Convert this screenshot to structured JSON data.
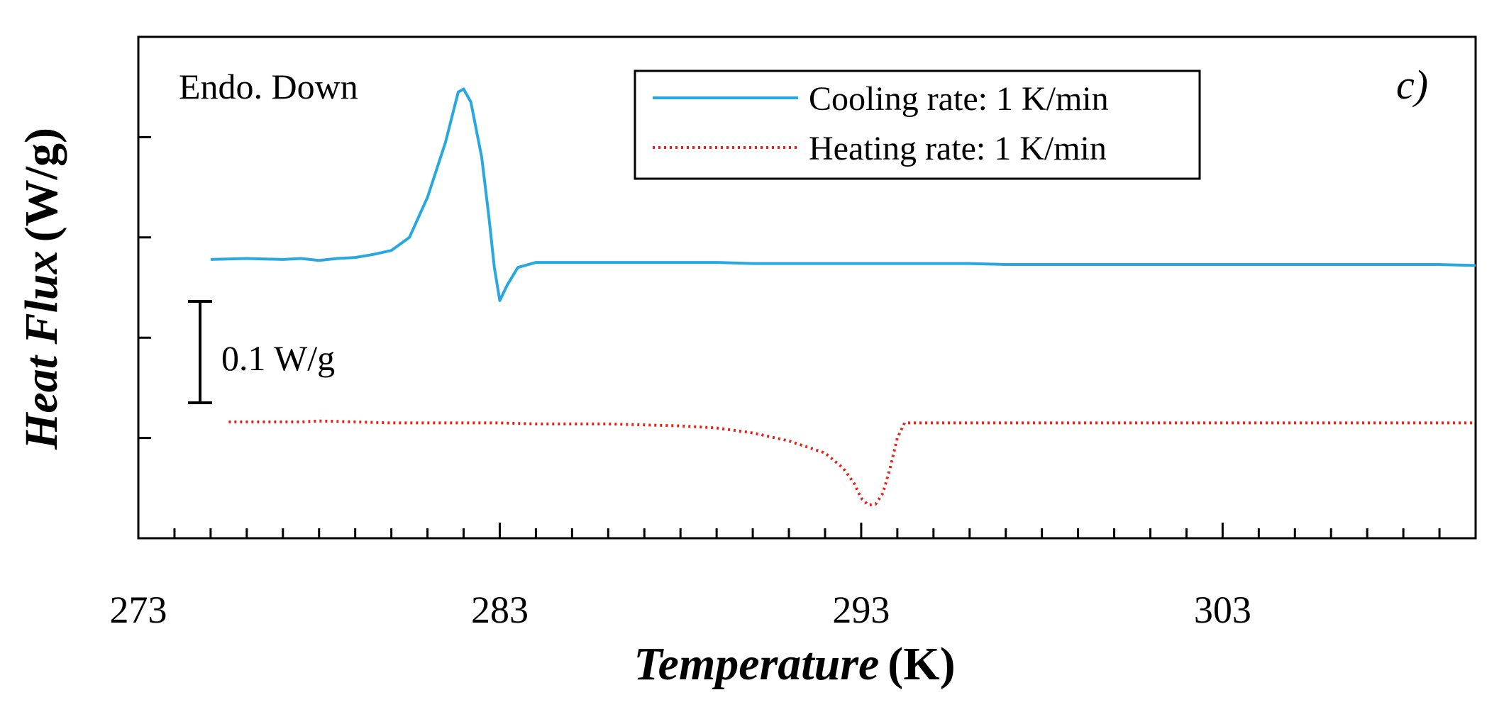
{
  "chart_data": {
    "type": "line",
    "panel_label": "c)",
    "annotation": "Endo. Down",
    "scale_bar": {
      "label": "0.1 W/g",
      "value": 0.1,
      "unit": "W/g"
    },
    "xlabel_main": "Temperature",
    "xlabel_unit": "(K)",
    "ylabel_main": "Heat Flux",
    "ylabel_unit": "(W/g)",
    "xlim": [
      273,
      310
    ],
    "ylim": [
      0,
      0.5
    ],
    "x_major_ticks": [
      273,
      283,
      293,
      303
    ],
    "x_tick_labels": [
      "273",
      "283",
      "293",
      "303"
    ],
    "x_minor_step": 1,
    "y_ticks": [
      0.1,
      0.2,
      0.3,
      0.4
    ],
    "series": [
      {
        "name": "Cooling rate: 1 K/min",
        "color": "#29A8E0",
        "style": "solid",
        "points": [
          [
            275.0,
            0.278
          ],
          [
            276.0,
            0.279
          ],
          [
            277.0,
            0.278
          ],
          [
            277.5,
            0.279
          ],
          [
            278.0,
            0.277
          ],
          [
            278.5,
            0.279
          ],
          [
            279.0,
            0.28
          ],
          [
            279.5,
            0.283
          ],
          [
            280.0,
            0.287
          ],
          [
            280.5,
            0.3
          ],
          [
            281.0,
            0.34
          ],
          [
            281.5,
            0.395
          ],
          [
            281.85,
            0.445
          ],
          [
            282.0,
            0.448
          ],
          [
            282.2,
            0.435
          ],
          [
            282.5,
            0.38
          ],
          [
            282.7,
            0.32
          ],
          [
            282.85,
            0.27
          ],
          [
            283.0,
            0.237
          ],
          [
            283.2,
            0.252
          ],
          [
            283.5,
            0.27
          ],
          [
            284.0,
            0.275
          ],
          [
            285.0,
            0.275
          ],
          [
            286.0,
            0.275
          ],
          [
            287.0,
            0.275
          ],
          [
            288.0,
            0.275
          ],
          [
            289.0,
            0.275
          ],
          [
            290.0,
            0.274
          ],
          [
            291.0,
            0.274
          ],
          [
            292.0,
            0.274
          ],
          [
            293.0,
            0.274
          ],
          [
            294.0,
            0.274
          ],
          [
            295.0,
            0.274
          ],
          [
            296.0,
            0.274
          ],
          [
            297.0,
            0.273
          ],
          [
            298.0,
            0.273
          ],
          [
            299.0,
            0.273
          ],
          [
            300.0,
            0.273
          ],
          [
            301.0,
            0.273
          ],
          [
            302.0,
            0.273
          ],
          [
            303.0,
            0.273
          ],
          [
            304.0,
            0.273
          ],
          [
            305.0,
            0.273
          ],
          [
            306.0,
            0.273
          ],
          [
            307.0,
            0.273
          ],
          [
            308.0,
            0.273
          ],
          [
            309.0,
            0.273
          ],
          [
            310.0,
            0.272
          ]
        ]
      },
      {
        "name": "Heating rate: 1 K/min",
        "color": "#E3241B",
        "style": "dotted",
        "points": [
          [
            275.5,
            0.116
          ],
          [
            276.5,
            0.116
          ],
          [
            277.5,
            0.116
          ],
          [
            278.0,
            0.117
          ],
          [
            279.0,
            0.116
          ],
          [
            280.0,
            0.115
          ],
          [
            281.0,
            0.115
          ],
          [
            282.0,
            0.115
          ],
          [
            283.0,
            0.115
          ],
          [
            284.0,
            0.114
          ],
          [
            285.0,
            0.114
          ],
          [
            286.0,
            0.114
          ],
          [
            287.0,
            0.113
          ],
          [
            288.0,
            0.112
          ],
          [
            289.0,
            0.11
          ],
          [
            290.0,
            0.105
          ],
          [
            291.0,
            0.097
          ],
          [
            292.0,
            0.085
          ],
          [
            292.5,
            0.07
          ],
          [
            292.8,
            0.055
          ],
          [
            293.0,
            0.04
          ],
          [
            293.2,
            0.033
          ],
          [
            293.4,
            0.034
          ],
          [
            293.6,
            0.045
          ],
          [
            293.8,
            0.07
          ],
          [
            294.0,
            0.1
          ],
          [
            294.2,
            0.115
          ],
          [
            295.0,
            0.115
          ],
          [
            296.0,
            0.115
          ],
          [
            297.0,
            0.115
          ],
          [
            298.0,
            0.115
          ],
          [
            299.0,
            0.115
          ],
          [
            300.0,
            0.115
          ],
          [
            301.0,
            0.115
          ],
          [
            302.0,
            0.115
          ],
          [
            303.0,
            0.115
          ],
          [
            304.0,
            0.115
          ],
          [
            305.0,
            0.115
          ],
          [
            306.0,
            0.115
          ],
          [
            307.0,
            0.115
          ],
          [
            308.0,
            0.115
          ],
          [
            309.0,
            0.115
          ],
          [
            310.0,
            0.115
          ]
        ]
      }
    ]
  }
}
